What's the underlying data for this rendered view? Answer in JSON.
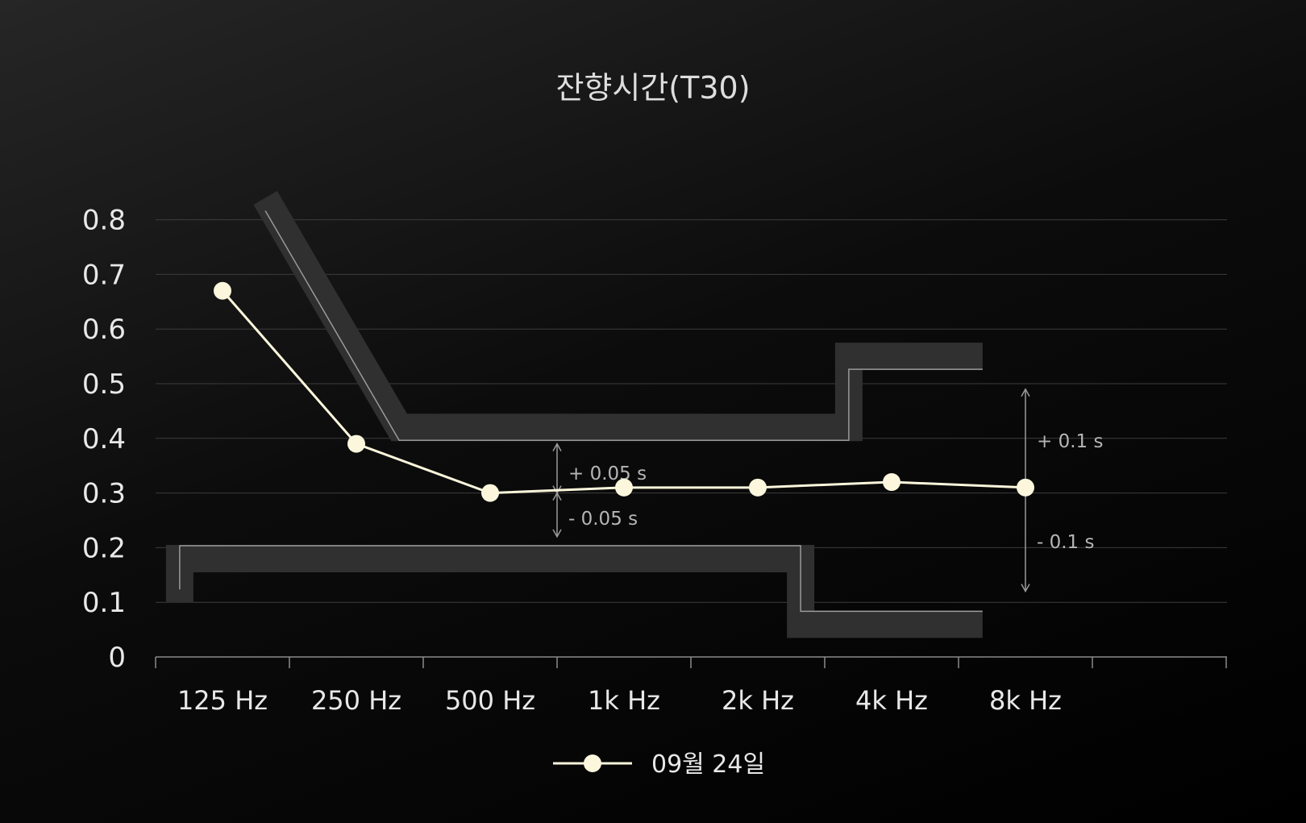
{
  "chart_data": {
    "type": "line",
    "title": "잔향시간(T30)",
    "categories": [
      "125 Hz",
      "250 Hz",
      "500 Hz",
      "1k Hz",
      "2k Hz",
      "4k Hz",
      "8k Hz"
    ],
    "yticks": [
      "0",
      "0.1",
      "0.2",
      "0.3",
      "0.4",
      "0.5",
      "0.6",
      "0.7",
      "0.8"
    ],
    "ylim": [
      0,
      0.8
    ],
    "grid": true,
    "legend_position": "bottom-center",
    "series": [
      {
        "name": "09월 24일",
        "color": "#fbf6dc",
        "values": [
          0.67,
          0.39,
          0.3,
          0.31,
          0.31,
          0.32,
          0.31
        ]
      }
    ],
    "tolerance_labels": {
      "mid_upper": "+ 0.05 s",
      "mid_lower": "- 0.05 s",
      "high_upper": "+ 0.1 s",
      "high_lower": "- 0.1 s"
    },
    "tolerance_band": {
      "upper": [
        [
          0.82,
          0.84
        ],
        [
          1.82,
          0.42
        ],
        [
          5.18,
          0.42
        ],
        [
          5.18,
          0.55
        ],
        [
          6.18,
          0.55
        ]
      ],
      "lower": [
        [
          0.18,
          0.1
        ],
        [
          0.18,
          0.18
        ],
        [
          4.82,
          0.18
        ],
        [
          4.82,
          0.06
        ],
        [
          6.18,
          0.06
        ]
      ]
    },
    "colors": {
      "band_fill": "#303030",
      "band_edge": "#9a9a9a",
      "grid": "#3c3c3c",
      "axis": "#8a8a8a"
    }
  }
}
